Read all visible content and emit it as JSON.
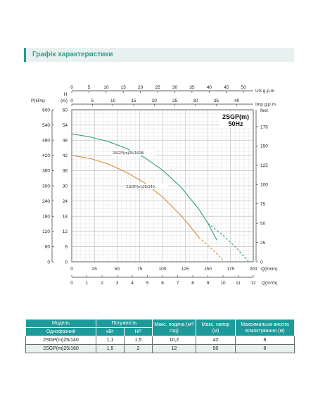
{
  "section_title": "Графік характеристики",
  "chart_data": {
    "type": "line",
    "title": "2SGP(m)",
    "subtitle": "50Hz",
    "x_axes": {
      "flow_lmin": {
        "label": "Q(l/min)",
        "ticks": [
          0,
          25,
          50,
          75,
          100,
          125,
          150,
          175,
          200
        ],
        "range": [
          0,
          200
        ]
      },
      "flow_m3h": {
        "label": "Q(m³/h)",
        "ticks": [
          0,
          1,
          2,
          3,
          4,
          5,
          6,
          7,
          8,
          9,
          10,
          11,
          12
        ],
        "range": [
          0,
          12
        ]
      },
      "us_gpm": {
        "label": "US  g.p.m",
        "ticks": [
          0,
          5,
          10,
          15,
          20,
          25,
          30,
          35,
          40,
          45,
          50
        ]
      },
      "imp_gpm": {
        "label": "Imp  g.p.m",
        "ticks": [
          0,
          5,
          10,
          15,
          20,
          25,
          30,
          35,
          40
        ]
      }
    },
    "y_axes": {
      "head_m": {
        "label_h": "H",
        "label_unit": "(m)",
        "ticks": [
          0,
          6,
          12,
          18,
          24,
          30,
          36,
          42,
          48,
          54,
          60
        ],
        "range": [
          0,
          60
        ]
      },
      "pressure_kpa": {
        "label": "P(kPa)",
        "ticks": [
          0,
          60,
          120,
          180,
          240,
          300,
          360,
          420,
          480,
          540,
          600
        ]
      },
      "head_feet": {
        "label": "feet",
        "ticks": [
          0,
          25,
          50,
          75,
          100,
          125,
          150,
          175
        ]
      }
    },
    "grid": true,
    "series": [
      {
        "name": "2SGP(m)25/160B",
        "color": "#2e9e86",
        "x": [
          0,
          20,
          40,
          60,
          80,
          100,
          120,
          140,
          150,
          160
        ],
        "y": [
          50.5,
          49.3,
          47.5,
          44.8,
          41.2,
          36.2,
          29.6,
          20.8,
          15.2,
          8.5
        ],
        "dashed_from_x": 150,
        "dashed_x": [
          150,
          165,
          180,
          195
        ],
        "dashed_y": [
          15.2,
          11,
          6,
          0
        ]
      },
      {
        "name": "2SGP(m)25/140",
        "color": "#d68a3c",
        "x": [
          0,
          20,
          40,
          60,
          80,
          100,
          120,
          130,
          140
        ],
        "y": [
          42,
          40.8,
          38.6,
          35.4,
          31.2,
          25.6,
          18.4,
          14.2,
          9.6
        ],
        "dashed_x": [
          140,
          150,
          160,
          168
        ],
        "dashed_y": [
          9.6,
          6.5,
          3.2,
          0
        ]
      }
    ]
  },
  "table": {
    "headers": {
      "model": "Модель",
      "power": "Потужність",
      "flow": "Макс. подача (м³/год)",
      "head": "Макс. напор (м)",
      "suction": "Максимальна висота всмоктування (м)",
      "phase": "Однофазний",
      "kw": "кВт",
      "hp": "HP"
    },
    "rows": [
      {
        "model": "2SGP(m)25/140",
        "kw": "1,1",
        "hp": "1,5",
        "flow": "10,2",
        "head": "42",
        "suction": "8"
      },
      {
        "model": "2SGP(m)25/160",
        "kw": "1,5",
        "hp": "2",
        "flow": "12",
        "head": "50",
        "suction": "8"
      }
    ]
  }
}
